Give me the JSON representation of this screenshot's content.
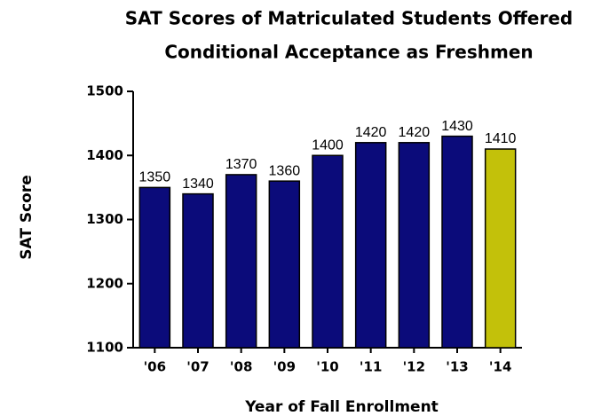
{
  "chart_data": {
    "type": "bar",
    "title": [
      "SAT Scores of Matriculated Students Offered",
      "Conditional Acceptance as Freshmen"
    ],
    "x_label": "Year of Fall Enrollment",
    "y_label": "SAT Score",
    "categories": [
      "'06",
      "'07",
      "'08",
      "'09",
      "'10",
      "'11",
      "'12",
      "'13",
      "'14"
    ],
    "values": [
      1350,
      1340,
      1370,
      1360,
      1400,
      1420,
      1420,
      1430,
      1410
    ],
    "colors": [
      "#0b0b7a",
      "#0b0b7a",
      "#0b0b7a",
      "#0b0b7a",
      "#0b0b7a",
      "#0b0b7a",
      "#0b0b7a",
      "#0b0b7a",
      "#c3c10a"
    ],
    "ylim": [
      1100,
      1500
    ],
    "yticks": [
      1100,
      1200,
      1300,
      1400,
      1500
    ]
  }
}
